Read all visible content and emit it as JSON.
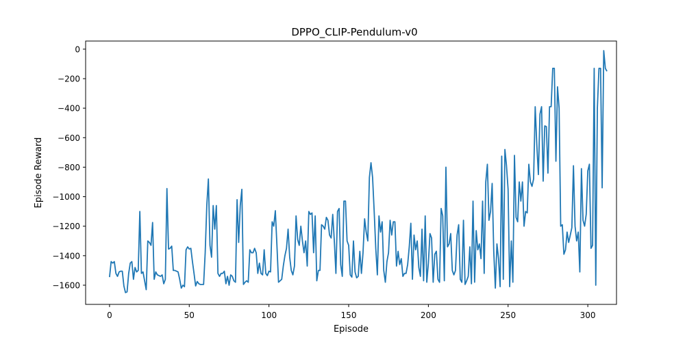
{
  "chart_data": {
    "type": "line",
    "title": "DPPO_CLIP-Pendulum-v0",
    "xlabel": "Episode",
    "ylabel": "Episode Reward",
    "xlim": [
      -15,
      318
    ],
    "ylim": [
      -1730,
      55
    ],
    "xticks": [
      0,
      50,
      100,
      150,
      200,
      250,
      300
    ],
    "yticks": [
      0,
      -200,
      -400,
      -600,
      -800,
      -1000,
      -1200,
      -1400,
      -1600
    ],
    "grid": false,
    "line_color": "#1f77b4",
    "series": [
      {
        "name": "",
        "x_start": 0,
        "values": [
          -1545,
          -1440,
          -1450,
          -1440,
          -1520,
          -1540,
          -1510,
          -1505,
          -1505,
          -1605,
          -1650,
          -1645,
          -1520,
          -1450,
          -1440,
          -1560,
          -1480,
          -1510,
          -1500,
          -1100,
          -1520,
          -1510,
          -1570,
          -1630,
          -1300,
          -1310,
          -1330,
          -1175,
          -1560,
          -1510,
          -1530,
          -1535,
          -1540,
          -1530,
          -1590,
          -1560,
          -945,
          -1355,
          -1350,
          -1335,
          -1500,
          -1500,
          -1505,
          -1510,
          -1560,
          -1620,
          -1600,
          -1610,
          -1360,
          -1340,
          -1355,
          -1350,
          -1440,
          -1520,
          -1605,
          -1575,
          -1590,
          -1595,
          -1595,
          -1595,
          -1380,
          -1060,
          -880,
          -1330,
          -1410,
          -1060,
          -1220,
          -1060,
          -1520,
          -1540,
          -1520,
          -1520,
          -1505,
          -1590,
          -1540,
          -1600,
          -1530,
          -1540,
          -1570,
          -1580,
          -1020,
          -1310,
          -1060,
          -950,
          -1595,
          -1580,
          -1570,
          -1580,
          -1360,
          -1380,
          -1380,
          -1350,
          -1380,
          -1520,
          -1450,
          -1520,
          -1530,
          -1360,
          -1520,
          -1535,
          -1505,
          -1510,
          -1170,
          -1200,
          -1095,
          -1330,
          -1580,
          -1570,
          -1560,
          -1470,
          -1400,
          -1350,
          -1220,
          -1410,
          -1500,
          -1530,
          -1470,
          -1130,
          -1290,
          -1330,
          -1200,
          -1300,
          -1380,
          -1300,
          -1470,
          -1100,
          -1120,
          -1110,
          -1380,
          -1130,
          -1570,
          -1500,
          -1500,
          -1190,
          -1200,
          -1220,
          -1140,
          -1160,
          -1260,
          -1280,
          -1120,
          -1300,
          -1520,
          -1100,
          -1080,
          -1460,
          -1540,
          -1030,
          -1030,
          -1300,
          -1330,
          -1530,
          -1545,
          -1300,
          -1510,
          -1550,
          -1540,
          -1370,
          -1520,
          -1380,
          -1150,
          -1240,
          -1300,
          -870,
          -770,
          -870,
          -1100,
          -1350,
          -1530,
          -1130,
          -1240,
          -1170,
          -1500,
          -1580,
          -1440,
          -1380,
          -1160,
          -1260,
          -1170,
          -1170,
          -1470,
          -1370,
          -1460,
          -1420,
          -1540,
          -1520,
          -1520,
          -1460,
          -1340,
          -1180,
          -1560,
          -1260,
          -1360,
          -1300,
          -1480,
          -1540,
          -1220,
          -1570,
          -1130,
          -1580,
          -1450,
          -1250,
          -1280,
          -1580,
          -1390,
          -1370,
          -1560,
          -1580,
          -1080,
          -1130,
          -1570,
          -800,
          -1340,
          -1320,
          -1250,
          -1500,
          -1530,
          -1500,
          -1260,
          -1190,
          -1560,
          -1580,
          -1160,
          -1595,
          -1570,
          -1540,
          -1340,
          -1590,
          -1030,
          -1580,
          -1230,
          -1360,
          -1320,
          -1420,
          -1030,
          -1520,
          -900,
          -780,
          -1160,
          -1100,
          -910,
          -1370,
          -1620,
          -1320,
          -1420,
          -1610,
          -725,
          -1560,
          -680,
          -790,
          -950,
          -1610,
          -1300,
          -1580,
          -720,
          -1140,
          -1170,
          -900,
          -1030,
          -900,
          -1200,
          -1100,
          -1110,
          -780,
          -900,
          -930,
          -880,
          -390,
          -645,
          -850,
          -440,
          -390,
          -895,
          -520,
          -525,
          -840,
          -390,
          -390,
          -130,
          -130,
          -760,
          -255,
          -400,
          -1200,
          -1190,
          -1390,
          -1360,
          -1240,
          -1310,
          -1260,
          -1210,
          -790,
          -1200,
          -1300,
          -1240,
          -1510,
          -810,
          -1160,
          -1200,
          -1120,
          -825,
          -780,
          -1350,
          -1330,
          -130,
          -1600,
          -400,
          -130,
          -130,
          -940,
          -10,
          -130,
          -150
        ]
      }
    ]
  }
}
